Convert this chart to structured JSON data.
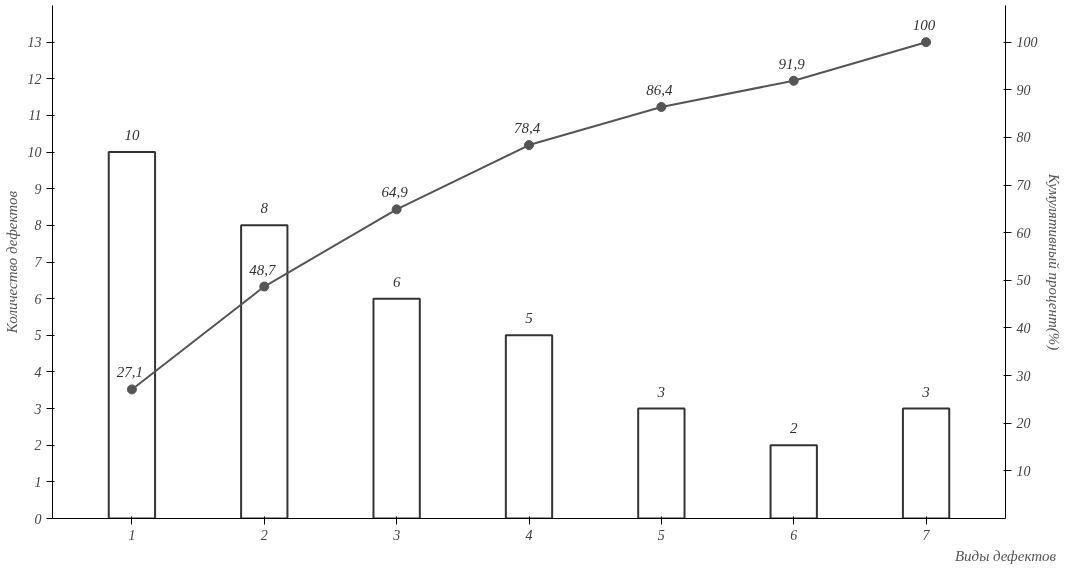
{
  "chart_data": {
    "type": "bar",
    "xlabel": "Виды дефектов",
    "ylabel": "Количество дефектов",
    "y2label": "Кумулятивный процент(%)",
    "categories": [
      "1",
      "2",
      "3",
      "4",
      "5",
      "6",
      "7"
    ],
    "series": [
      {
        "color": "#ffffff",
        "values": [
          10,
          8,
          6,
          5,
          3,
          2,
          3
        ],
        "data_labels": true
      },
      {
        "type": "line",
        "axis": "y2",
        "color": "#555555",
        "marker": "circle",
        "values": [
          27.1,
          48.7,
          64.9,
          78.4,
          86.4,
          91.9,
          100
        ],
        "value_labels": [
          "27,1",
          "48,7",
          "64,9",
          "78,4",
          "86,4",
          "91,9",
          "100"
        ]
      }
    ],
    "ylim": [
      0,
      14
    ],
    "yticks": [
      0,
      1,
      2,
      3,
      4,
      5,
      6,
      7,
      8,
      9,
      10,
      11,
      12,
      13
    ],
    "y2lim": [
      0,
      107.7
    ],
    "y2ticks": [
      10,
      20,
      30,
      40,
      50,
      60,
      70,
      80,
      90,
      100
    ],
    "grid": false
  }
}
